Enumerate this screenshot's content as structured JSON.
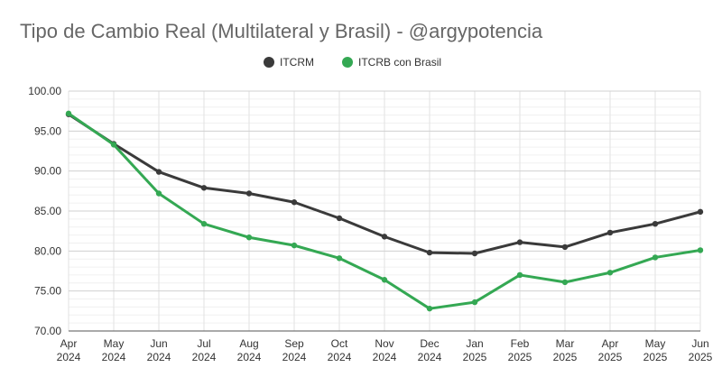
{
  "chart_data": {
    "type": "line",
    "title": "Tipo de Cambio Real (Multilateral y Brasil) - @argypotencia",
    "xlabel": "",
    "ylabel": "",
    "categories": [
      [
        "Apr",
        "2024"
      ],
      [
        "May",
        "2024"
      ],
      [
        "Jun",
        "2024"
      ],
      [
        "Jul",
        "2024"
      ],
      [
        "Aug",
        "2024"
      ],
      [
        "Sep",
        "2024"
      ],
      [
        "Oct",
        "2024"
      ],
      [
        "Nov",
        "2024"
      ],
      [
        "Dec",
        "2024"
      ],
      [
        "Jan",
        "2025"
      ],
      [
        "Feb",
        "2025"
      ],
      [
        "Mar",
        "2025"
      ],
      [
        "Apr",
        "2025"
      ],
      [
        "May",
        "2025"
      ],
      [
        "Jun",
        "2025"
      ]
    ],
    "ylim": [
      70,
      100
    ],
    "yticks": [
      "70.00",
      "75.00",
      "80.00",
      "85.00",
      "90.00",
      "95.00",
      "100.00"
    ],
    "grid": true,
    "legend_position": "top-center",
    "series": [
      {
        "name": "ITCRM",
        "color": "#3a3a3a",
        "values": [
          97.1,
          93.4,
          89.9,
          87.9,
          87.2,
          86.1,
          84.1,
          81.8,
          79.8,
          79.7,
          81.1,
          80.5,
          82.3,
          83.4,
          84.9
        ]
      },
      {
        "name": "ITCRB con Brasil",
        "color": "#34a853",
        "values": [
          97.2,
          93.3,
          87.2,
          83.4,
          81.7,
          80.7,
          79.1,
          76.4,
          72.8,
          73.6,
          77.0,
          76.1,
          77.3,
          79.2,
          80.1
        ]
      }
    ]
  }
}
